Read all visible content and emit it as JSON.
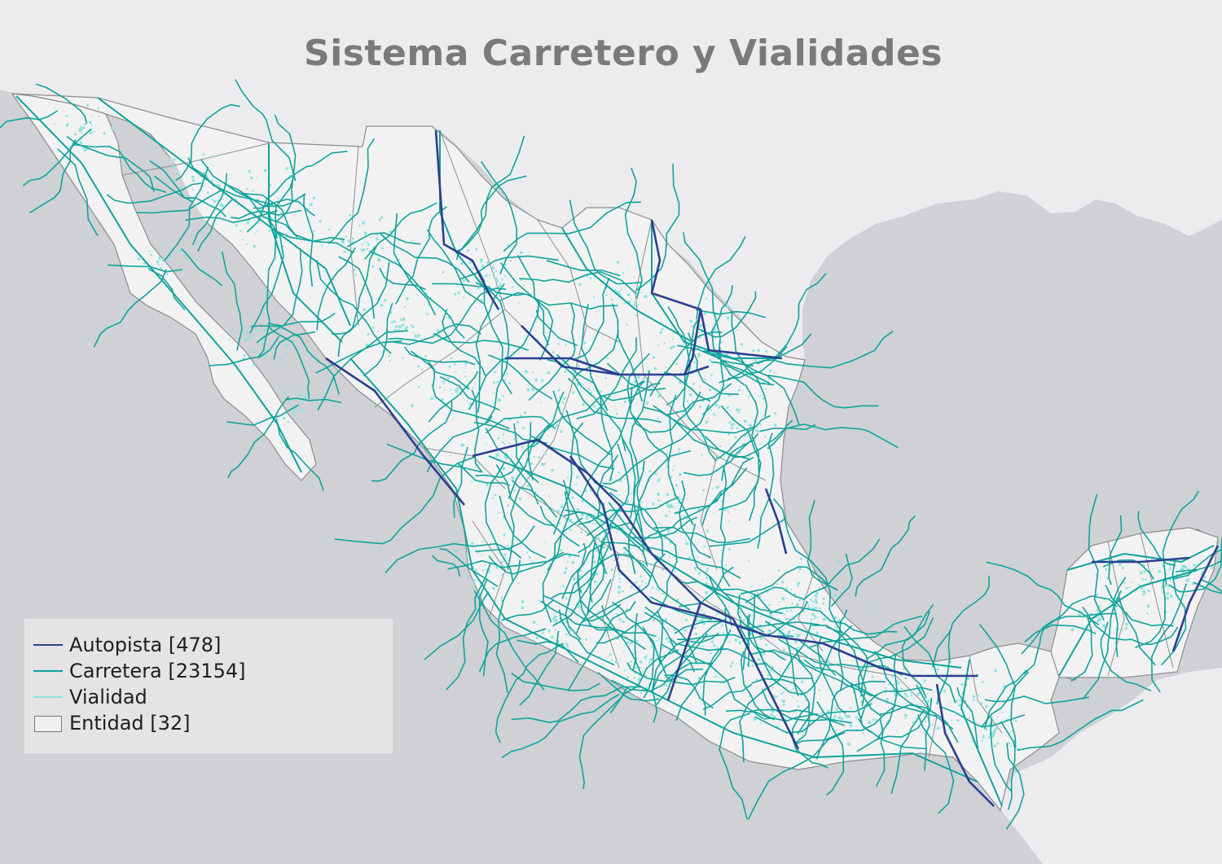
{
  "map": {
    "title": "Sistema Carretero y Vialidades",
    "colors": {
      "ocean": "#cfd1d5",
      "land": "#ececee",
      "mexico": "#f2f2f2",
      "state_border": "#8c8c8c",
      "autopista": "#2b3f8f",
      "carretera": "#10a39b",
      "vialidad": "#8fe3dc"
    }
  },
  "legend": {
    "items": [
      {
        "label": "Autopista [478]",
        "symbol": "line",
        "color": "#2b3f8f"
      },
      {
        "label": "Carretera [23154]",
        "symbol": "line",
        "color": "#10a39b"
      },
      {
        "label": "Vialidad",
        "symbol": "line",
        "color": "#8fe3dc"
      },
      {
        "label": "Entidad [32]",
        "symbol": "box",
        "color": "#777777"
      }
    ]
  }
}
